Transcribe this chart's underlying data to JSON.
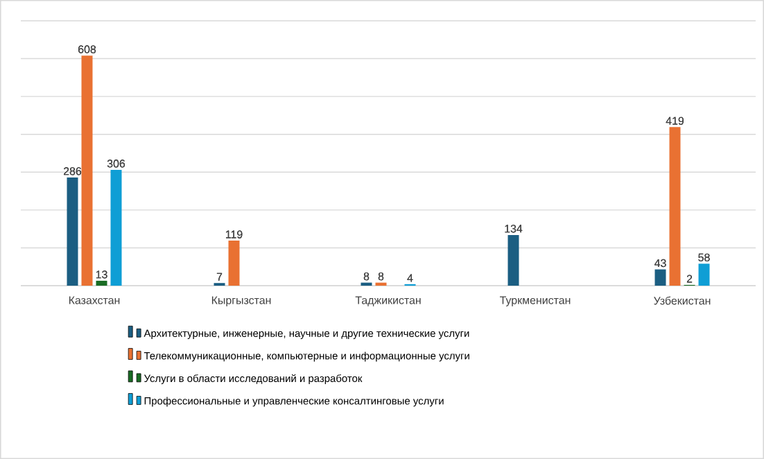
{
  "chart_data": {
    "type": "bar",
    "categories": [
      "Казахстан",
      "Кыргызстан",
      "Таджикистан",
      "Туркменистан",
      "Узбекистан"
    ],
    "series": [
      {
        "name": "Архитектурные, инженерные, научные и другие технические услуги",
        "color": "#1b5e82",
        "values": [
          286,
          7,
          8,
          134,
          43
        ]
      },
      {
        "name": "Телекоммуникационные, компьютерные и информационные услуги",
        "color": "#e97132",
        "values": [
          608,
          119,
          8,
          null,
          419
        ]
      },
      {
        "name": "Услуги в области исследований и разработок",
        "color": "#196b24",
        "values": [
          13,
          null,
          null,
          null,
          2
        ]
      },
      {
        "name": "Профессиональные и управленческие консалтинговые услуги",
        "color": "#0f9ed5",
        "values": [
          306,
          null,
          4,
          null,
          58
        ]
      }
    ],
    "ylim": [
      0,
      700
    ],
    "yticks": [
      {
        "value": 0,
        "label": null
      },
      {
        "value": 100,
        "label": null
      },
      {
        "value": 200,
        "label": null
      },
      {
        "value": 300,
        "label": null
      },
      {
        "value": 400,
        "label": null
      },
      {
        "value": 500,
        "label": null
      },
      {
        "value": 600,
        "label": null
      },
      {
        "value": 700,
        "label": null
      }
    ],
    "grid": "y",
    "legend": "bottom",
    "tick_labels": "x",
    "data_labels": true
  }
}
